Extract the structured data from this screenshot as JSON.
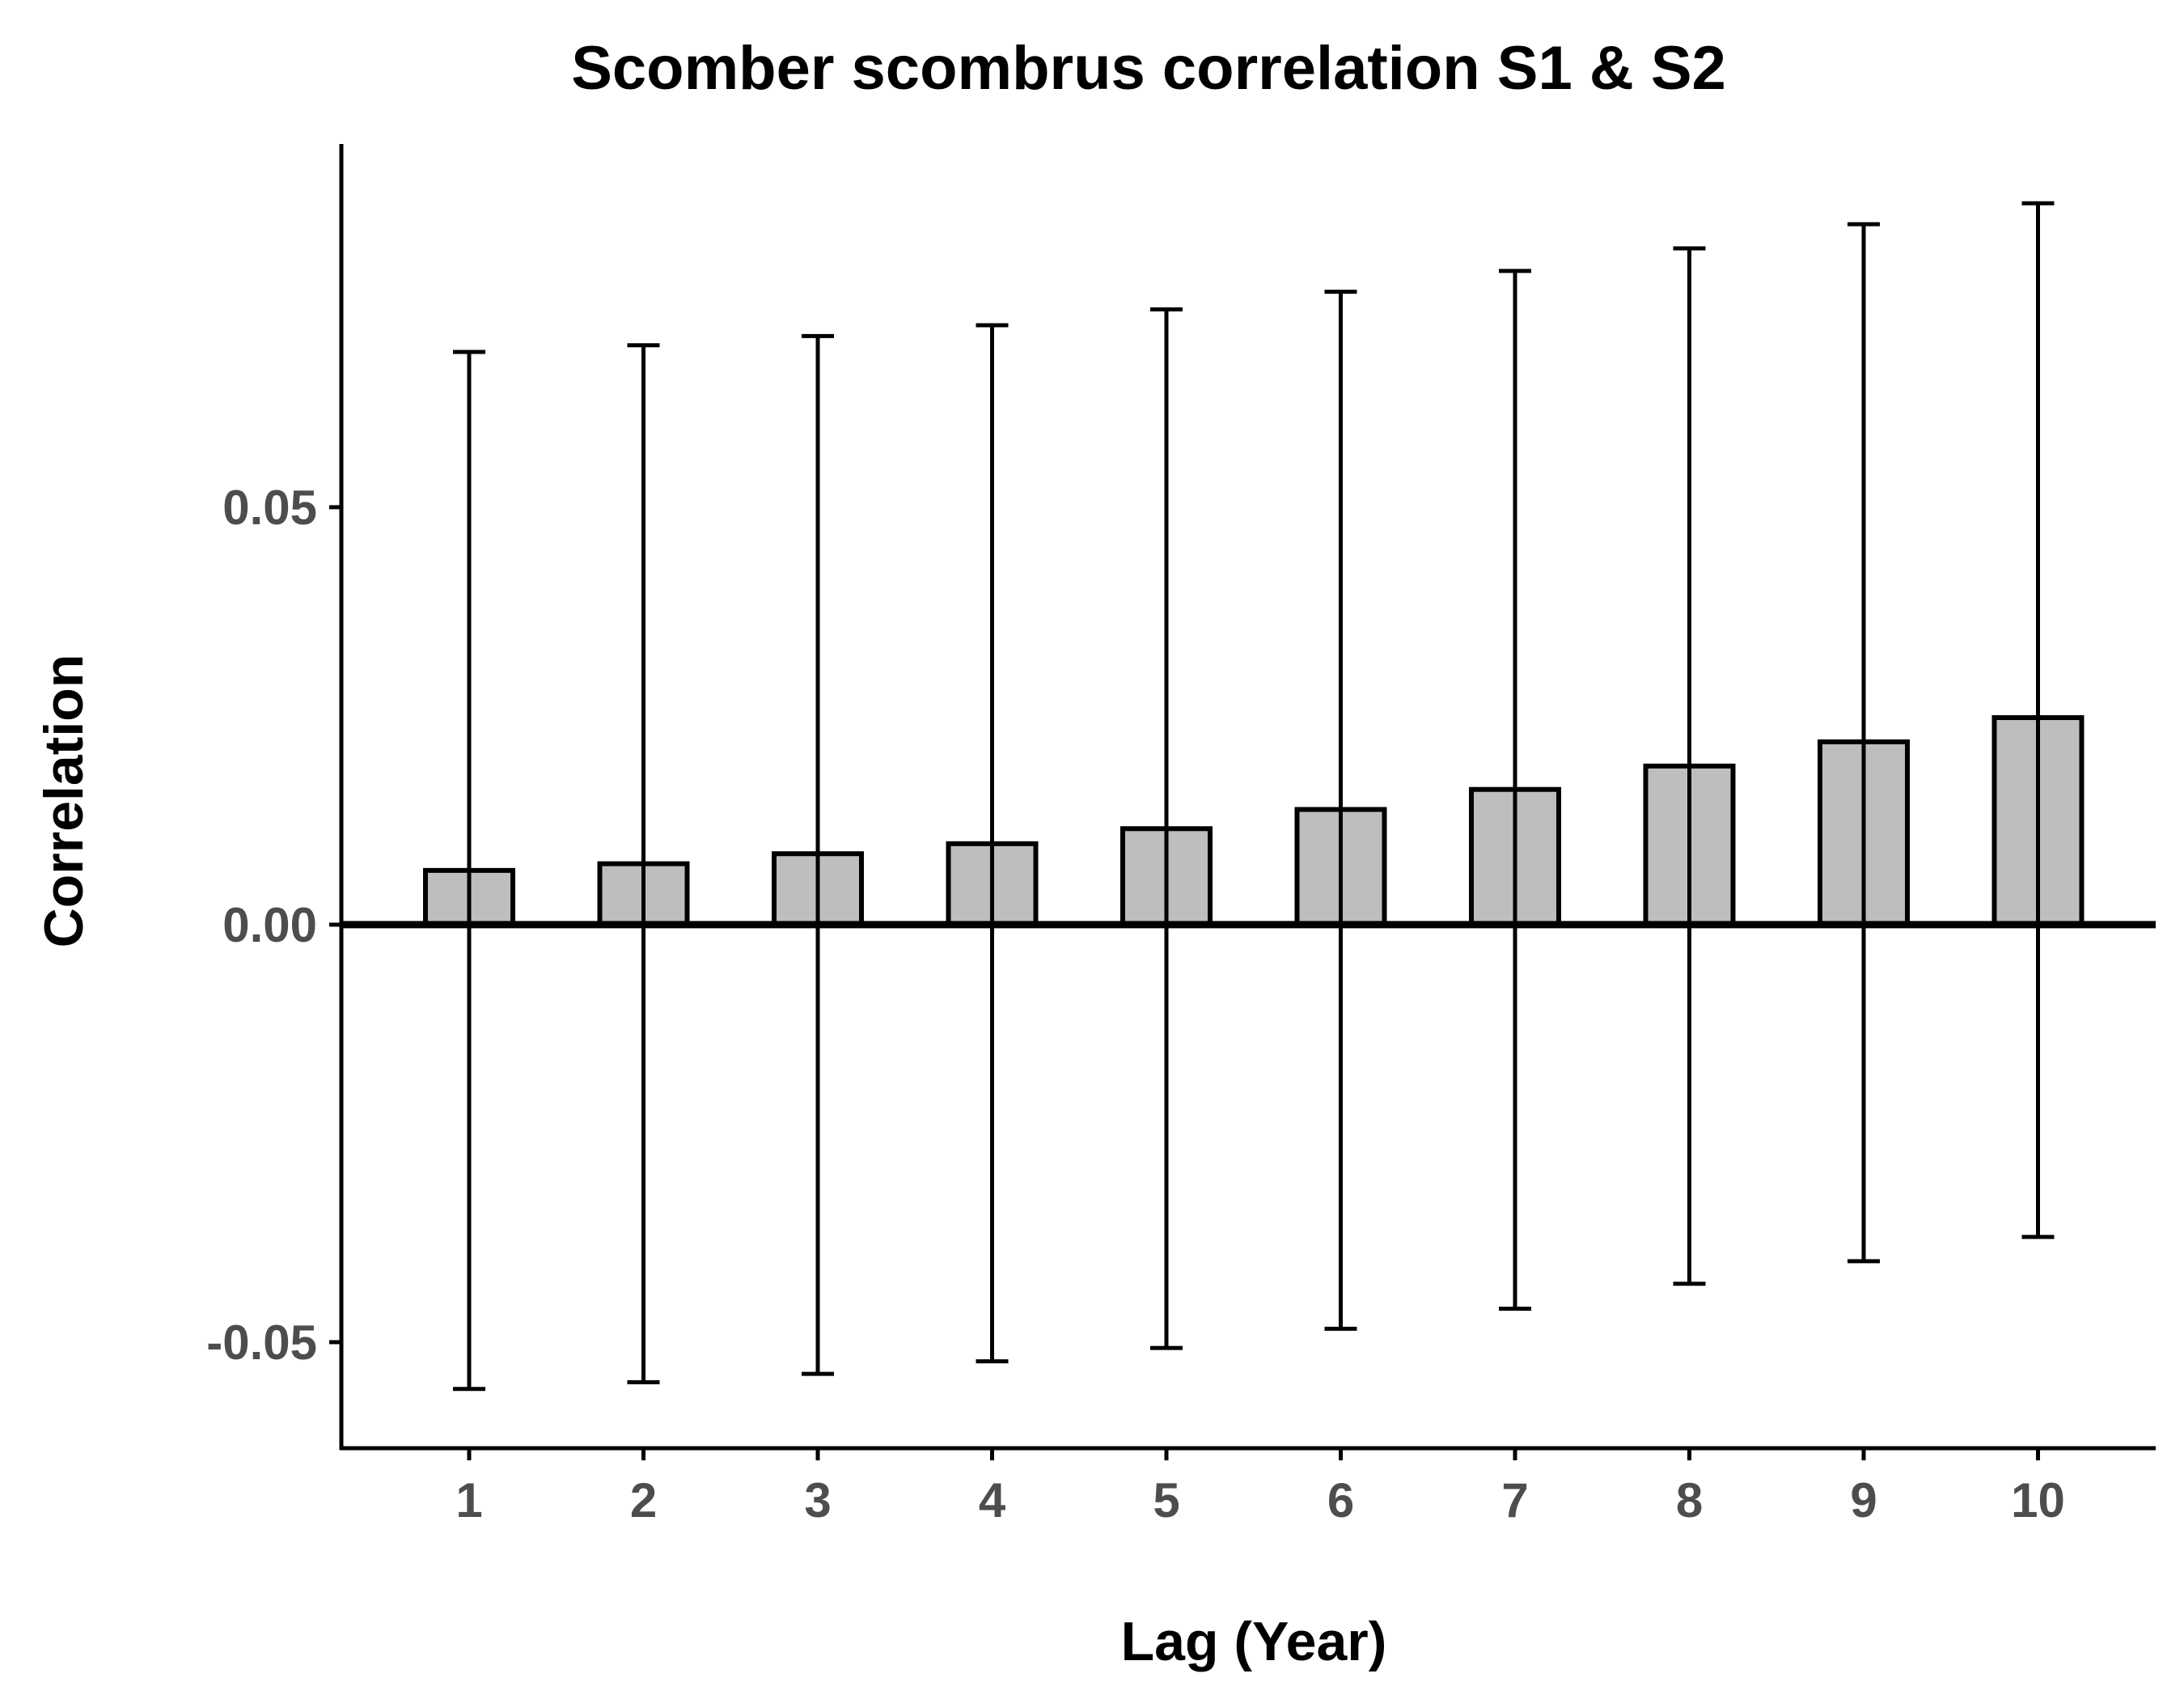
{
  "chart_data": {
    "type": "bar",
    "title": "Scomber scombrus correlation S1 & S2",
    "xlabel": "Lag (Year)",
    "ylabel": "Correlation",
    "categories": [
      "1",
      "2",
      "3",
      "4",
      "5",
      "6",
      "7",
      "8",
      "9",
      "10"
    ],
    "values": [
      0.0065,
      0.0073,
      0.0085,
      0.0097,
      0.0115,
      0.0138,
      0.0162,
      0.019,
      0.0219,
      0.0248
    ],
    "error_upper": [
      0.0686,
      0.0694,
      0.0705,
      0.0718,
      0.0737,
      0.0758,
      0.0783,
      0.081,
      0.0839,
      0.0864
    ],
    "error_lower": [
      -0.0556,
      -0.0548,
      -0.0538,
      -0.0523,
      -0.0507,
      -0.0484,
      -0.046,
      -0.043,
      -0.0403,
      -0.0374
    ],
    "ylim": [
      -0.0627,
      0.0935
    ],
    "yticks": [
      -0.05,
      0.0,
      0.05
    ],
    "ytick_labels": [
      "-0.05",
      "0.00",
      "0.05"
    ],
    "reference_line": 0,
    "grid": false,
    "colors": {
      "bar_fill": "#bebebe",
      "bar_stroke": "#000000",
      "axis": "#000000",
      "tick_label": "#4d4d4d",
      "background": "#ffffff"
    }
  }
}
